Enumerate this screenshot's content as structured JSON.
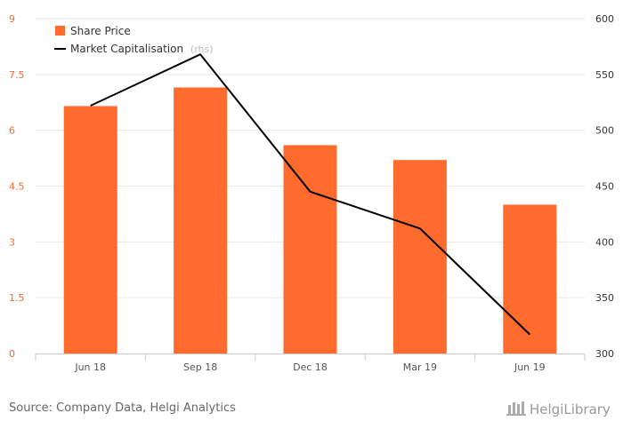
{
  "chart_data": {
    "type": "bar+line",
    "categories": [
      "Jun 18",
      "Sep 18",
      "Dec 18",
      "Mar 19",
      "Jun 19"
    ],
    "series": [
      {
        "name": "Share Price",
        "type": "bar",
        "axis": "left",
        "color": "#ff6b2c",
        "values": [
          6.65,
          7.15,
          5.6,
          5.2,
          4.0
        ]
      },
      {
        "name": "Market Capitalisation",
        "legend_suffix": "(rhs)",
        "type": "line",
        "axis": "right",
        "color": "#000000",
        "values": [
          522,
          568,
          445,
          412,
          317
        ]
      }
    ],
    "y_left": {
      "min": 0,
      "max": 9,
      "ticks": [
        "0",
        "1.5",
        "3",
        "4.5",
        "6",
        "7.5",
        "9"
      ],
      "tick_color": "#f26b2a"
    },
    "y_right": {
      "min": 300,
      "max": 600,
      "ticks": [
        "300",
        "350",
        "400",
        "450",
        "500",
        "550",
        "600"
      ]
    },
    "grid": true,
    "legend_position": "top-left"
  },
  "footer": {
    "source": "Source: Company Data, Helgi Analytics",
    "brand": "HelgiLibrary"
  }
}
